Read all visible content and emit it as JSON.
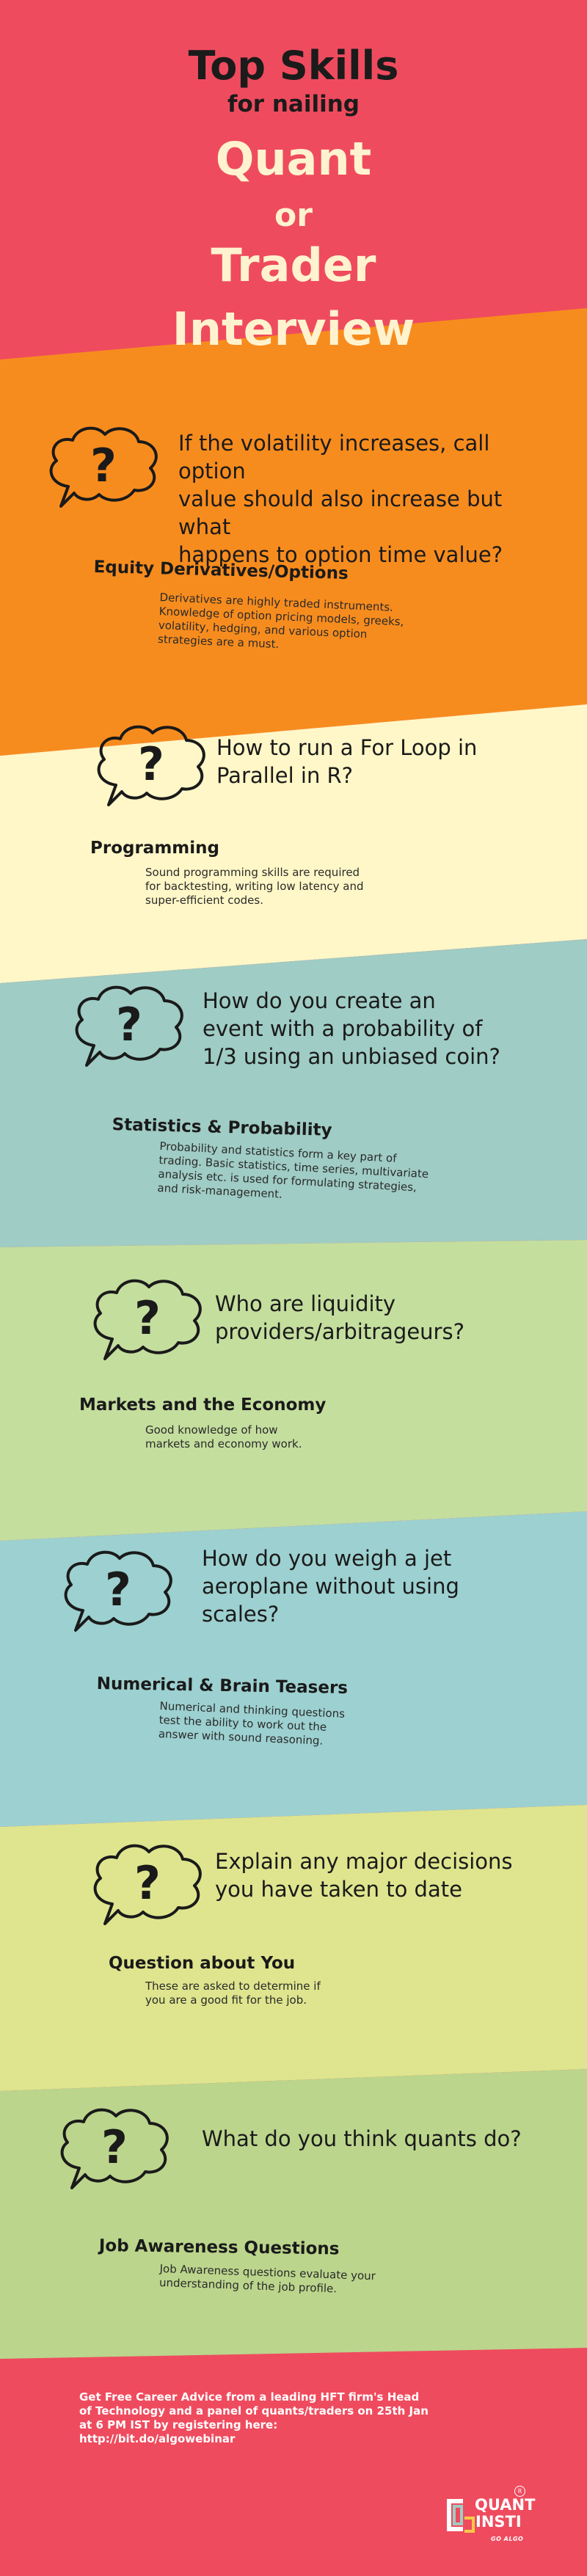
{
  "header": {
    "line1": "Top Skills",
    "line2": "for nailing",
    "line3": "Quant",
    "line4": "or",
    "line5": "Trader",
    "line6": "Interview"
  },
  "colors": {
    "background": "#EF4B5E",
    "title_dark": "#1b1b1b",
    "title_cream": "#FFF3CF",
    "sections": [
      "#F78C1E",
      "#FFF7C7",
      "#9FCCC4",
      "#C4DE9E",
      "#9DD0D0",
      "#DEE58E",
      "#BBD58C"
    ]
  },
  "sections": [
    {
      "question_lines": [
        "If the volatility increases, call option",
        "value should also increase but what",
        "happens to option time value?"
      ],
      "skill": "Equity Derivatives/Options",
      "desc_lines": [
        "Derivatives are highly traded instruments.",
        "Knowledge of option pricing models, greeks,",
        "volatility, hedging, and various option",
        "strategies are a must."
      ],
      "icon": "question-bubble-icon"
    },
    {
      "question_lines": [
        "How to run a For Loop in",
        "Parallel in R?"
      ],
      "skill": "Programming",
      "desc_lines": [
        "Sound programming skills are required",
        "for backtesting, writing low latency and",
        "super-efficient codes."
      ],
      "icon": "question-bubble-icon"
    },
    {
      "question_lines": [
        "How do you create an",
        "event with a probability of",
        "1/3 using an unbiased coin?"
      ],
      "skill": "Statistics & Probability",
      "desc_lines": [
        "Probability and statistics form a key part of",
        "trading. Basic statistics, time series, multivariate",
        "analysis etc. is used for formulating strategies,",
        "and risk-management."
      ],
      "icon": "question-bubble-icon"
    },
    {
      "question_lines": [
        "Who are liquidity",
        "providers/arbitrageurs?"
      ],
      "skill": "Markets and the Economy",
      "desc_lines": [
        "Good knowledge of how",
        "markets and economy work."
      ],
      "icon": "question-bubble-icon"
    },
    {
      "question_lines": [
        "How do you weigh a jet",
        "aeroplane without using",
        "scales?"
      ],
      "skill": "Numerical & Brain Teasers",
      "desc_lines": [
        "Numerical and thinking questions",
        "test the ability to work out the",
        "answer with sound reasoning."
      ],
      "icon": "question-bubble-icon"
    },
    {
      "question_lines": [
        "Explain any major decisions",
        "you have taken to date"
      ],
      "skill": "Question about You",
      "desc_lines": [
        "These are asked to determine if",
        "you are a good fit for the job."
      ],
      "icon": "question-bubble-icon"
    },
    {
      "question_lines": [
        "What do you think quants do?"
      ],
      "skill": "Job Awareness Questions",
      "desc_lines": [
        "Job Awareness questions evaluate your",
        "understanding of the job profile."
      ],
      "icon": "question-bubble-icon"
    }
  ],
  "footer": {
    "lines": [
      "Get Free Career Advice from a leading HFT firm's Head",
      "of Technology and a panel of quants/traders on 25th Jan",
      "at 6 PM IST by registering here:",
      "http://bit.do/algowebinar"
    ]
  },
  "logo": {
    "word1": "QUANT",
    "word2": "INSTI",
    "tagline": "GO ALGO",
    "registered": "R"
  }
}
